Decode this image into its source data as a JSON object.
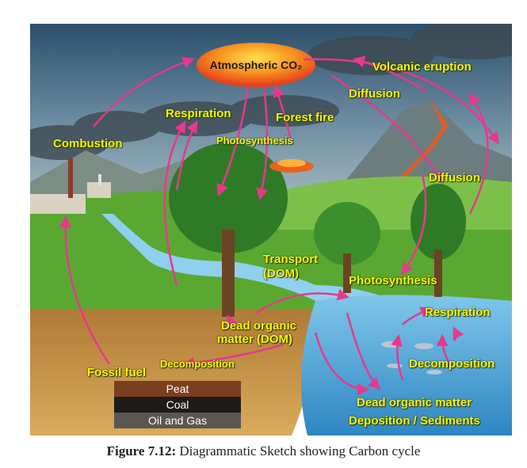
{
  "co2_label": "Atmospheric CO₂",
  "labels": {
    "volcanic_eruption": "Volcanic eruption",
    "diffusion_top": "Diffusion",
    "respiration_land": "Respiration",
    "forest_fire": "Forest fire",
    "photosynthesis_land": "Photosynthesis",
    "combustion": "Combustion",
    "diffusion_right": "Diffusion",
    "transport_line1": "Transport",
    "transport_line2": "(DOM)",
    "photosynthesis_water": "Photosynthesis",
    "respiration_water": "Respiration",
    "dom_line1": "Dead organic",
    "dom_line2": "matter (DOM)",
    "decomposition_land": "Decomposition",
    "fossil_fuel": "Fossil fuel",
    "decomposition_water": "Decomposition",
    "dead_organic_matter": "Dead organic matter",
    "deposition": "Deposition / Sediments"
  },
  "fossil_layers": [
    "Peat",
    "Coal",
    "Oil and Gas"
  ],
  "caption": {
    "number": "Figure 7.12:",
    "text": "Diagrammatic Sketch showing Carbon cycle"
  },
  "colors": {
    "arrow": "#e8388c",
    "label": "#fff200",
    "co2_fill": "#f26522",
    "water": "#4aa3d8",
    "soil": "#c8963e",
    "grass": "#5aa832"
  }
}
